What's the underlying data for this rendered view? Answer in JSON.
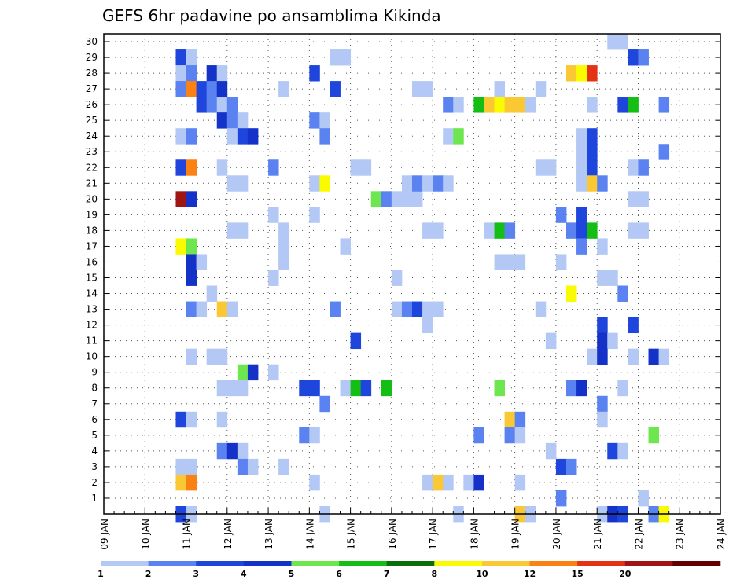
{
  "chart_data": {
    "type": "heatmap",
    "title": "GEFS 6hr padavine po ansamblima Kikinda",
    "xlabel": "",
    "ylabel": "",
    "x_tick_labels": [
      "09 JAN",
      "10 JAN",
      "11 JAN",
      "12 JAN",
      "13 JAN",
      "14 JAN",
      "15 JAN",
      "16 JAN",
      "17 JAN",
      "18 JAN",
      "19 JAN",
      "20 JAN",
      "21 JAN",
      "22 JAN",
      "23 JAN",
      "24 JAN"
    ],
    "y_tick_labels": [
      "1",
      "2",
      "3",
      "4",
      "5",
      "6",
      "7",
      "8",
      "9",
      "10",
      "11",
      "12",
      "13",
      "14",
      "15",
      "16",
      "17",
      "18",
      "19",
      "20",
      "21",
      "22",
      "23",
      "24",
      "25",
      "26",
      "27",
      "28",
      "29",
      "30"
    ],
    "xlim": [
      0,
      60
    ],
    "ylim": [
      0,
      30
    ],
    "grid": true,
    "colorbar": {
      "position": "bottom",
      "labels": [
        "1",
        "2",
        "3",
        "4",
        "5",
        "6",
        "7",
        "8",
        "10",
        "12",
        "15",
        "20"
      ],
      "colors": [
        "#b4c8f5",
        "#5a82f0",
        "#1e46dc",
        "#1432c8",
        "#6ee650",
        "#14be14",
        "#0a6e0a",
        "#fafa00",
        "#fac832",
        "#fa8214",
        "#e63214",
        "#a01414",
        "#640000"
      ]
    },
    "cells": [
      {
        "s": 7,
        "m": 29,
        "v": 3
      },
      {
        "s": 8,
        "m": 29,
        "v": 1
      },
      {
        "s": 7,
        "m": 28,
        "v": 1
      },
      {
        "s": 8,
        "m": 28,
        "v": 2
      },
      {
        "s": 10,
        "m": 28,
        "v": 4.5
      },
      {
        "s": 11,
        "m": 28,
        "v": 1
      },
      {
        "s": 7,
        "m": 27,
        "v": 2
      },
      {
        "s": 8,
        "m": 27,
        "v": 12
      },
      {
        "s": 9,
        "m": 27,
        "v": 3
      },
      {
        "s": 10,
        "m": 27,
        "v": 2
      },
      {
        "s": 11,
        "m": 27,
        "v": 4.5
      },
      {
        "s": 9,
        "m": 26,
        "v": 3
      },
      {
        "s": 10,
        "m": 26,
        "v": 2
      },
      {
        "s": 11,
        "m": 26,
        "v": 1
      },
      {
        "s": 12,
        "m": 26,
        "v": 2
      },
      {
        "s": 11,
        "m": 25,
        "v": 4.5
      },
      {
        "s": 12,
        "m": 25,
        "v": 2
      },
      {
        "s": 13,
        "m": 25,
        "v": 1
      },
      {
        "s": 7,
        "m": 24,
        "v": 1
      },
      {
        "s": 8,
        "m": 24,
        "v": 2
      },
      {
        "s": 12,
        "m": 24,
        "v": 1
      },
      {
        "s": 13,
        "m": 24,
        "v": 3
      },
      {
        "s": 14,
        "m": 24,
        "v": 4.5
      },
      {
        "s": 7,
        "m": 22,
        "v": 3
      },
      {
        "s": 8,
        "m": 22,
        "v": 12
      },
      {
        "s": 11,
        "m": 22,
        "v": 1
      },
      {
        "s": 12,
        "m": 21,
        "v": 1
      },
      {
        "s": 13,
        "m": 21,
        "v": 1
      },
      {
        "s": 7,
        "m": 20,
        "v": 25
      },
      {
        "s": 8,
        "m": 20,
        "v": 4.5
      },
      {
        "s": 7,
        "m": 17,
        "v": 8.5
      },
      {
        "s": 8,
        "m": 17,
        "v": 5.5
      },
      {
        "s": 8,
        "m": 16,
        "v": 4.5
      },
      {
        "s": 9,
        "m": 16,
        "v": 1
      },
      {
        "s": 8,
        "m": 15,
        "v": 4.5
      },
      {
        "s": 10,
        "m": 14,
        "v": 1
      },
      {
        "s": 8,
        "m": 13,
        "v": 2
      },
      {
        "s": 9,
        "m": 13,
        "v": 1
      },
      {
        "s": 11,
        "m": 13,
        "v": 10
      },
      {
        "s": 12,
        "m": 13,
        "v": 1
      },
      {
        "s": 12,
        "m": 18,
        "v": 1
      },
      {
        "s": 13,
        "m": 18,
        "v": 1
      },
      {
        "s": 8,
        "m": 10,
        "v": 1
      },
      {
        "s": 10,
        "m": 10,
        "v": 1
      },
      {
        "s": 11,
        "m": 10,
        "v": 1
      },
      {
        "s": 13,
        "m": 9,
        "v": 5.5
      },
      {
        "s": 14,
        "m": 9,
        "v": 4.5
      },
      {
        "s": 11,
        "m": 8,
        "v": 1
      },
      {
        "s": 12,
        "m": 8,
        "v": 1
      },
      {
        "s": 13,
        "m": 8,
        "v": 1
      },
      {
        "s": 7,
        "m": 6,
        "v": 3
      },
      {
        "s": 8,
        "m": 6,
        "v": 1
      },
      {
        "s": 11,
        "m": 6,
        "v": 1
      },
      {
        "s": 11,
        "m": 4,
        "v": 2
      },
      {
        "s": 12,
        "m": 4,
        "v": 4.5
      },
      {
        "s": 13,
        "m": 4,
        "v": 1
      },
      {
        "s": 7,
        "m": 3,
        "v": 1
      },
      {
        "s": 8,
        "m": 3,
        "v": 1
      },
      {
        "s": 13,
        "m": 3,
        "v": 2
      },
      {
        "s": 14,
        "m": 3,
        "v": 1
      },
      {
        "s": 7,
        "m": 2,
        "v": 10
      },
      {
        "s": 8,
        "m": 2,
        "v": 12
      },
      {
        "s": 7,
        "m": 0,
        "v": 3
      },
      {
        "s": 8,
        "m": 0,
        "v": 1
      },
      {
        "s": 17,
        "m": 27,
        "v": 1
      },
      {
        "s": 16,
        "m": 22,
        "v": 2
      },
      {
        "s": 16,
        "m": 19,
        "v": 1
      },
      {
        "s": 17,
        "m": 18,
        "v": 1
      },
      {
        "s": 17,
        "m": 17,
        "v": 1
      },
      {
        "s": 17,
        "m": 16,
        "v": 1
      },
      {
        "s": 16,
        "m": 15,
        "v": 1
      },
      {
        "s": 16,
        "m": 9,
        "v": 1
      },
      {
        "s": 17,
        "m": 3,
        "v": 1
      },
      {
        "s": 20,
        "m": 28,
        "v": 3
      },
      {
        "s": 20,
        "m": 25,
        "v": 2
      },
      {
        "s": 21,
        "m": 25,
        "v": 1
      },
      {
        "s": 21,
        "m": 24,
        "v": 2
      },
      {
        "s": 20,
        "m": 21,
        "v": 1
      },
      {
        "s": 21,
        "m": 21,
        "v": 8
      },
      {
        "s": 20,
        "m": 19,
        "v": 1
      },
      {
        "s": 20,
        "m": 8,
        "v": 3
      },
      {
        "s": 19,
        "m": 8,
        "v": 3
      },
      {
        "s": 21,
        "m": 7,
        "v": 2
      },
      {
        "s": 19,
        "m": 5,
        "v": 2
      },
      {
        "s": 20,
        "m": 5,
        "v": 1
      },
      {
        "s": 20,
        "m": 2,
        "v": 1
      },
      {
        "s": 21,
        "m": 0,
        "v": 1
      },
      {
        "s": 22,
        "m": 29,
        "v": 1
      },
      {
        "s": 23,
        "m": 29,
        "v": 1
      },
      {
        "s": 22,
        "m": 27,
        "v": 3
      },
      {
        "s": 22,
        "m": 13,
        "v": 2
      },
      {
        "s": 23,
        "m": 17,
        "v": 1
      },
      {
        "s": 24,
        "m": 22,
        "v": 1
      },
      {
        "s": 25,
        "m": 22,
        "v": 1
      },
      {
        "s": 24,
        "m": 11,
        "v": 3
      },
      {
        "s": 23,
        "m": 8,
        "v": 1
      },
      {
        "s": 24,
        "m": 8,
        "v": 6.5
      },
      {
        "s": 25,
        "m": 8,
        "v": 3
      },
      {
        "s": 26,
        "m": 20,
        "v": 5.5
      },
      {
        "s": 27,
        "m": 20,
        "v": 2
      },
      {
        "s": 28,
        "m": 20,
        "v": 1
      },
      {
        "s": 29,
        "m": 20,
        "v": 1
      },
      {
        "s": 30,
        "m": 20,
        "v": 1
      },
      {
        "s": 27,
        "m": 8,
        "v": 6.5
      },
      {
        "s": 28,
        "m": 15,
        "v": 1
      },
      {
        "s": 30,
        "m": 27,
        "v": 1
      },
      {
        "s": 31,
        "m": 27,
        "v": 1
      },
      {
        "s": 29,
        "m": 21,
        "v": 1
      },
      {
        "s": 30,
        "m": 21,
        "v": 2
      },
      {
        "s": 31,
        "m": 21,
        "v": 1
      },
      {
        "s": 28,
        "m": 13,
        "v": 1
      },
      {
        "s": 29,
        "m": 13,
        "v": 2
      },
      {
        "s": 30,
        "m": 13,
        "v": 3
      },
      {
        "s": 31,
        "m": 13,
        "v": 1
      },
      {
        "s": 32,
        "m": 13,
        "v": 1
      },
      {
        "s": 31,
        "m": 12,
        "v": 1
      },
      {
        "s": 31,
        "m": 18,
        "v": 1
      },
      {
        "s": 32,
        "m": 18,
        "v": 1
      },
      {
        "s": 31,
        "m": 2,
        "v": 1
      },
      {
        "s": 32,
        "m": 2,
        "v": 10
      },
      {
        "s": 33,
        "m": 2,
        "v": 1
      },
      {
        "s": 33,
        "m": 26,
        "v": 2
      },
      {
        "s": 34,
        "m": 26,
        "v": 1
      },
      {
        "s": 33,
        "m": 24,
        "v": 1
      },
      {
        "s": 34,
        "m": 24,
        "v": 5.5
      },
      {
        "s": 32,
        "m": 21,
        "v": 2
      },
      {
        "s": 33,
        "m": 21,
        "v": 1
      },
      {
        "s": 35,
        "m": 2,
        "v": 1
      },
      {
        "s": 36,
        "m": 2,
        "v": 4.5
      },
      {
        "s": 34,
        "m": 0,
        "v": 1
      },
      {
        "s": 36,
        "m": 26,
        "v": 6.5
      },
      {
        "s": 37,
        "m": 26,
        "v": 10
      },
      {
        "s": 38,
        "m": 26,
        "v": 8.5
      },
      {
        "s": 39,
        "m": 26,
        "v": 10
      },
      {
        "s": 40,
        "m": 26,
        "v": 10
      },
      {
        "s": 41,
        "m": 26,
        "v": 1
      },
      {
        "s": 38,
        "m": 27,
        "v": 1
      },
      {
        "s": 37,
        "m": 18,
        "v": 1
      },
      {
        "s": 38,
        "m": 18,
        "v": 6.5
      },
      {
        "s": 39,
        "m": 18,
        "v": 2
      },
      {
        "s": 38,
        "m": 16,
        "v": 1
      },
      {
        "s": 39,
        "m": 16,
        "v": 1
      },
      {
        "s": 40,
        "m": 16,
        "v": 1
      },
      {
        "s": 38,
        "m": 8,
        "v": 5.5
      },
      {
        "s": 39,
        "m": 6,
        "v": 10
      },
      {
        "s": 40,
        "m": 6,
        "v": 2
      },
      {
        "s": 36,
        "m": 5,
        "v": 2
      },
      {
        "s": 39,
        "m": 5,
        "v": 2
      },
      {
        "s": 40,
        "m": 5,
        "v": 1
      },
      {
        "s": 40,
        "m": 2,
        "v": 1
      },
      {
        "s": 40,
        "m": 0,
        "v": 10
      },
      {
        "s": 41,
        "m": 0,
        "v": 1
      },
      {
        "s": 42,
        "m": 27,
        "v": 1
      },
      {
        "s": 42,
        "m": 22,
        "v": 1
      },
      {
        "s": 43,
        "m": 22,
        "v": 1
      },
      {
        "s": 42,
        "m": 13,
        "v": 1
      },
      {
        "s": 43,
        "m": 11,
        "v": 1
      },
      {
        "s": 43,
        "m": 4,
        "v": 1
      },
      {
        "s": 44,
        "m": 3,
        "v": 3
      },
      {
        "s": 45,
        "m": 3,
        "v": 2
      },
      {
        "s": 44,
        "m": 1,
        "v": 2
      },
      {
        "s": 44,
        "m": 16,
        "v": 1
      },
      {
        "s": 45,
        "m": 14,
        "v": 8.5
      },
      {
        "s": 44,
        "m": 19,
        "v": 2
      },
      {
        "s": 45,
        "m": 18,
        "v": 2
      },
      {
        "s": 46,
        "m": 18,
        "v": 3
      },
      {
        "s": 46,
        "m": 19,
        "v": 3
      },
      {
        "s": 46,
        "m": 17,
        "v": 2
      },
      {
        "s": 45,
        "m": 8,
        "v": 2
      },
      {
        "s": 46,
        "m": 8,
        "v": 4.5
      },
      {
        "s": 45,
        "m": 28,
        "v": 10
      },
      {
        "s": 46,
        "m": 28,
        "v": 8.5
      },
      {
        "s": 47,
        "m": 28,
        "v": 15
      },
      {
        "s": 47,
        "m": 26,
        "v": 1
      },
      {
        "s": 46,
        "m": 24,
        "v": 1
      },
      {
        "s": 47,
        "m": 24,
        "v": 3
      },
      {
        "s": 46,
        "m": 23,
        "v": 1
      },
      {
        "s": 47,
        "m": 23,
        "v": 3
      },
      {
        "s": 46,
        "m": 22,
        "v": 1
      },
      {
        "s": 47,
        "m": 22,
        "v": 3
      },
      {
        "s": 46,
        "m": 21,
        "v": 1
      },
      {
        "s": 47,
        "m": 21,
        "v": 10
      },
      {
        "s": 48,
        "m": 21,
        "v": 2
      },
      {
        "s": 47,
        "m": 18,
        "v": 6.5
      },
      {
        "s": 48,
        "m": 17,
        "v": 1
      },
      {
        "s": 48,
        "m": 15,
        "v": 1
      },
      {
        "s": 49,
        "m": 15,
        "v": 1
      },
      {
        "s": 48,
        "m": 12,
        "v": 3
      },
      {
        "s": 48,
        "m": 11,
        "v": 4.5
      },
      {
        "s": 49,
        "m": 11,
        "v": 1
      },
      {
        "s": 47,
        "m": 10,
        "v": 1
      },
      {
        "s": 48,
        "m": 10,
        "v": 4.5
      },
      {
        "s": 48,
        "m": 7,
        "v": 2
      },
      {
        "s": 48,
        "m": 6,
        "v": 1
      },
      {
        "s": 49,
        "m": 4,
        "v": 3
      },
      {
        "s": 50,
        "m": 4,
        "v": 1
      },
      {
        "s": 48,
        "m": 0,
        "v": 1
      },
      {
        "s": 49,
        "m": 0,
        "v": 4.5
      },
      {
        "s": 50,
        "m": 0,
        "v": 3
      },
      {
        "s": 49,
        "m": 30,
        "v": 1
      },
      {
        "s": 50,
        "m": 30,
        "v": 1
      },
      {
        "s": 51,
        "m": 29,
        "v": 3
      },
      {
        "s": 52,
        "m": 29,
        "v": 2
      },
      {
        "s": 50,
        "m": 26,
        "v": 3
      },
      {
        "s": 51,
        "m": 26,
        "v": 6.5
      },
      {
        "s": 51,
        "m": 22,
        "v": 1
      },
      {
        "s": 52,
        "m": 22,
        "v": 2
      },
      {
        "s": 51,
        "m": 20,
        "v": 1
      },
      {
        "s": 52,
        "m": 20,
        "v": 1
      },
      {
        "s": 51,
        "m": 18,
        "v": 1
      },
      {
        "s": 52,
        "m": 18,
        "v": 1
      },
      {
        "s": 50,
        "m": 14,
        "v": 2
      },
      {
        "s": 51,
        "m": 12,
        "v": 3
      },
      {
        "s": 51,
        "m": 10,
        "v": 1
      },
      {
        "s": 50,
        "m": 8,
        "v": 1
      },
      {
        "s": 53,
        "m": 10,
        "v": 4.5
      },
      {
        "s": 54,
        "m": 10,
        "v": 1
      },
      {
        "s": 53,
        "m": 5,
        "v": 5.5
      },
      {
        "s": 52,
        "m": 1,
        "v": 1
      },
      {
        "s": 53,
        "m": 0,
        "v": 2
      },
      {
        "s": 54,
        "m": 0,
        "v": 8.5
      },
      {
        "s": 54,
        "m": 26,
        "v": 2
      },
      {
        "s": 54,
        "m": 23,
        "v": 2
      }
    ]
  }
}
